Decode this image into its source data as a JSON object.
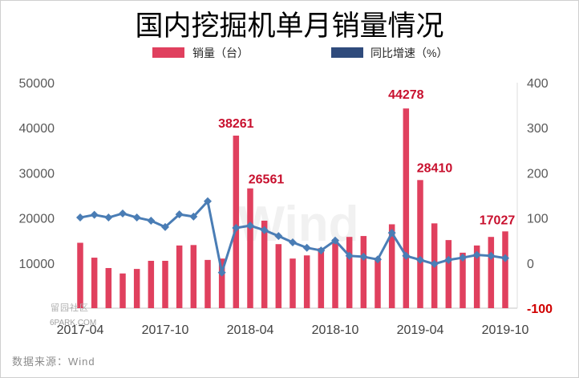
{
  "chart_data": {
    "type": "bar",
    "title": "国内挖掘机单月销量情况",
    "x": [
      "2017-04",
      "2017-05",
      "2017-06",
      "2017-07",
      "2017-08",
      "2017-09",
      "2017-10",
      "2017-11",
      "2017-12",
      "2018-01",
      "2018-02",
      "2018-03",
      "2018-04",
      "2018-05",
      "2018-06",
      "2018-07",
      "2018-08",
      "2018-09",
      "2018-10",
      "2018-11",
      "2018-12",
      "2019-01",
      "2019-02",
      "2019-03",
      "2019-04",
      "2019-05",
      "2019-06",
      "2019-07",
      "2019-08",
      "2019-09",
      "2019-10"
    ],
    "x_tick_labels": [
      "2017-04",
      "2017-10",
      "2018-04",
      "2018-10",
      "2019-04",
      "2019-10"
    ],
    "series": [
      {
        "name": "销量（台）",
        "type": "bar",
        "axis": "left",
        "color": "#E0405E",
        "legend_color": "#E0405E",
        "values": [
          14500,
          11200,
          8900,
          7700,
          8700,
          10500,
          10500,
          13900,
          14000,
          10700,
          11000,
          38261,
          26561,
          19400,
          14200,
          11000,
          11700,
          13300,
          15300,
          15800,
          16000,
          11200,
          18600,
          44278,
          28410,
          18800,
          15100,
          12300,
          13900,
          15800,
          17027
        ],
        "data_labels": {
          "x": [
            "2018-03",
            "2018-04",
            "2019-03",
            "2019-04",
            "2019-10"
          ],
          "color": "#C8102E"
        }
      },
      {
        "name": "同比增速（%）",
        "type": "line",
        "axis": "right",
        "color": "#4A7DB5",
        "legend_color": "#2F4B7C",
        "marker": "diamond",
        "values": [
          101,
          107,
          101,
          110,
          101,
          94,
          80,
          108,
          103,
          137,
          -21,
          78,
          83,
          73,
          60,
          46,
          34,
          28,
          50,
          16,
          14,
          8,
          67,
          16,
          7,
          -2,
          7,
          12,
          18,
          16,
          11
        ]
      }
    ],
    "left_axis": {
      "range": [
        0,
        50000
      ],
      "ticks": [
        10000,
        20000,
        30000,
        40000,
        50000
      ]
    },
    "right_axis": {
      "range": [
        -100,
        400
      ],
      "ticks": [
        -100,
        0,
        100,
        200,
        300,
        400
      ],
      "negative_tick_color": "#D00000"
    },
    "grid": false,
    "legend_position": "top"
  },
  "source": "数据来源：Wind",
  "watermarks": {
    "chart": "Wind",
    "site_cn": "留园社区",
    "site_en": "6PARK.COM"
  }
}
